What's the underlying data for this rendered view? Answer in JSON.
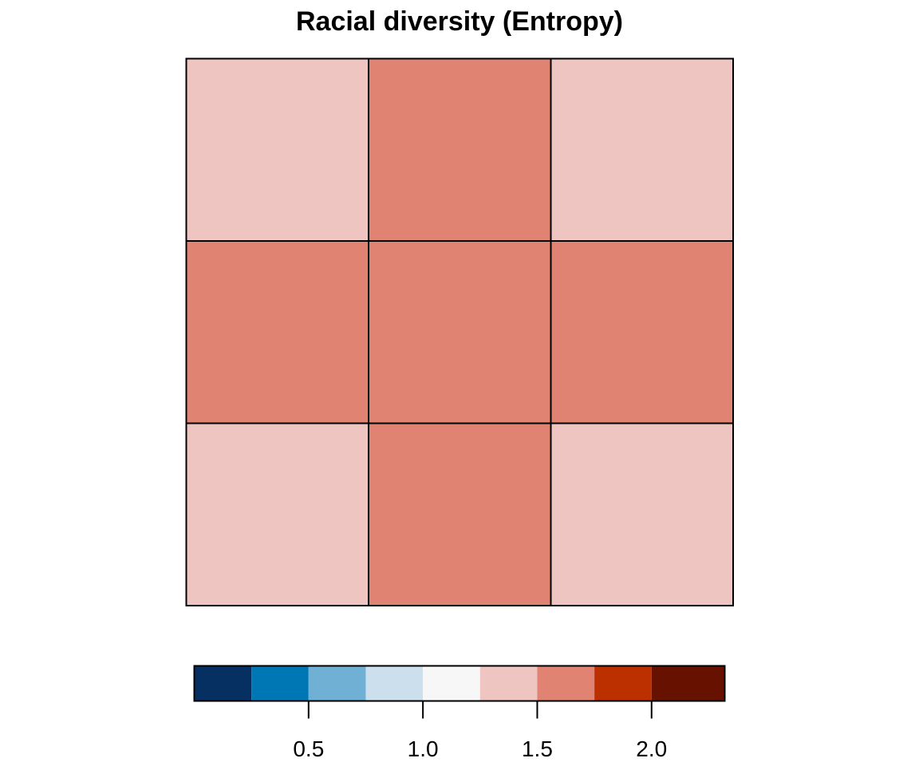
{
  "chart_data": {
    "type": "heatmap",
    "title": "Racial diversity (Entropy)",
    "rows": 3,
    "cols": 3,
    "values": [
      [
        1.375,
        1.625,
        1.375
      ],
      [
        1.625,
        1.625,
        1.625
      ],
      [
        1.375,
        1.625,
        1.375
      ]
    ],
    "colorbar": {
      "breaks": [
        0.0,
        0.25,
        0.5,
        0.75,
        1.0,
        1.25,
        1.5,
        1.75,
        2.0,
        2.32
      ],
      "colors": [
        "#053061",
        "#0077B5",
        "#71B0D5",
        "#CCDFEC",
        "#F7F7F7",
        "#EFC5C1",
        "#E08373",
        "#BC3000",
        "#671100"
      ],
      "ticks": [
        0.5,
        1.0,
        1.5,
        2.0
      ],
      "tick_labels": [
        "0.5",
        "1.0",
        "1.5",
        "2.0"
      ]
    }
  }
}
